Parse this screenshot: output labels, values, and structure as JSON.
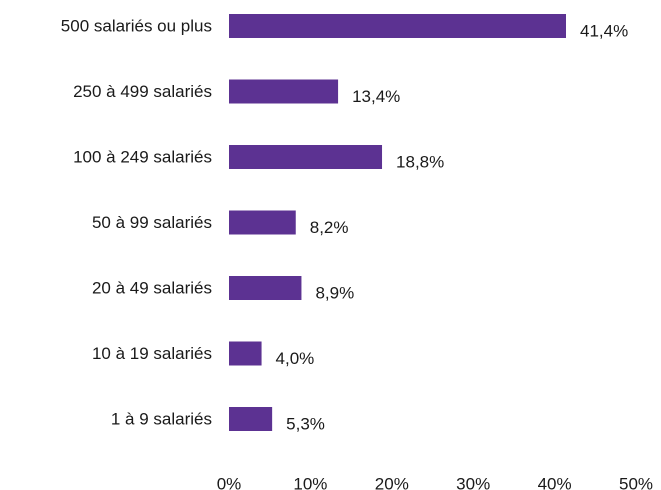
{
  "chart_data": {
    "type": "bar",
    "orientation": "horizontal",
    "categories": [
      "500 salariés ou plus",
      "250 à 499 salariés",
      "100 à 249 salariés",
      "50 à 99 salariés",
      "20 à 49 salariés",
      "10 à 19 salariés",
      "1 à 9 salariés"
    ],
    "values": [
      41.4,
      13.4,
      18.8,
      8.2,
      8.9,
      4.0,
      5.3
    ],
    "value_labels": [
      "41,4%",
      "13,4%",
      "18,8%",
      "8,2%",
      "8,9%",
      "4,0%",
      "5,3%"
    ],
    "color": "#5c3292",
    "xlim": [
      0,
      50
    ],
    "xticks": [
      {
        "value": 0,
        "label": "0%"
      },
      {
        "value": 10,
        "label": "10%"
      },
      {
        "value": 20,
        "label": "20%"
      },
      {
        "value": 30,
        "label": "30%"
      },
      {
        "value": 40,
        "label": "40%"
      },
      {
        "value": 50,
        "label": "50%"
      }
    ],
    "grid": false
  }
}
